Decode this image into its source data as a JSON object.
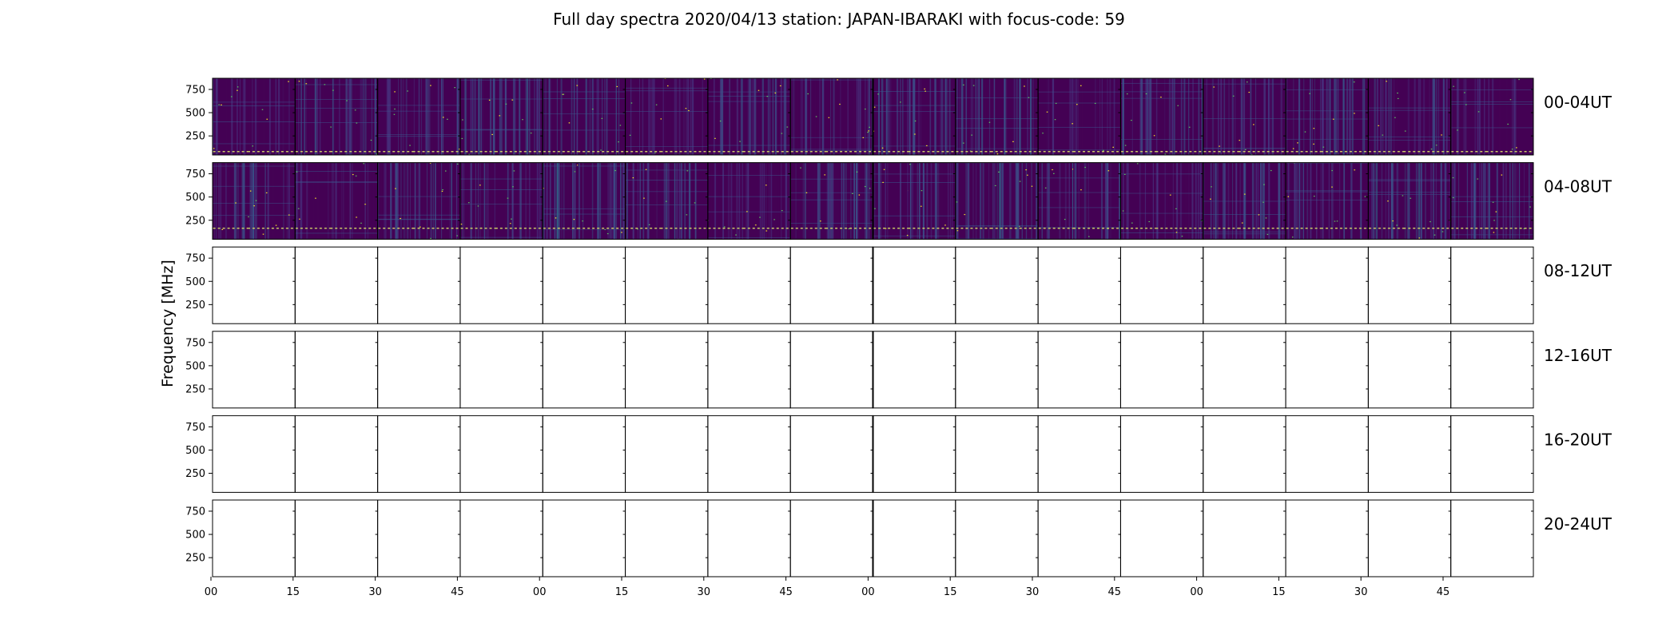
{
  "chart_data": {
    "type": "heatmap",
    "title": "Full day spectra 2020/04/13 station: JAPAN-IBARAKI with focus-code: 59",
    "ylabel": "Frequency [MHz]",
    "xlabel": "",
    "ytick_labels": [
      "750",
      "500",
      "250"
    ],
    "ytick_values": [
      750,
      500,
      250
    ],
    "ylim": [
      45,
      870
    ],
    "xtick_labels": [
      "00",
      "15",
      "30",
      "45",
      "00",
      "15",
      "30",
      "45",
      "00",
      "15",
      "30",
      "45",
      "00",
      "15",
      "30",
      "45"
    ],
    "panels_per_row": 16,
    "row_labels": [
      "00-04UT",
      "04-08UT",
      "08-12UT",
      "12-16UT",
      "16-20UT",
      "20-24UT"
    ],
    "rows_with_data": [
      true,
      true,
      false,
      false,
      false,
      false
    ],
    "colormap": "viridis",
    "colors": {
      "low": "#440154",
      "mid_low": "#3b528b",
      "mid": "#21918c",
      "high": "#5ec962",
      "peak": "#fde725"
    },
    "grid": false
  }
}
